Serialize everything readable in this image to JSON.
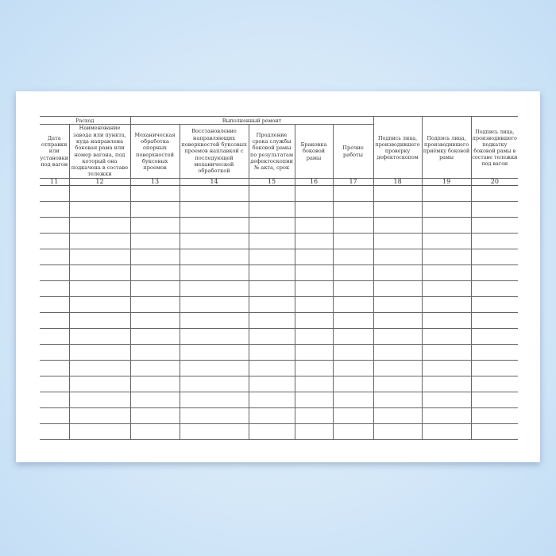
{
  "form": {
    "group_headers": {
      "expense": "Расход",
      "repair": "Выполненный ремонт"
    },
    "columns": [
      {
        "number": "11",
        "label": "Дата отправки или установки под вагон"
      },
      {
        "number": "12",
        "label": "Наименование завода или пункта, куда направлена боковая рама или номер вагона, под который она подкачена в составе тележки"
      },
      {
        "number": "13",
        "label": "Механическая обработка опорных поверхностей буксовых проемов"
      },
      {
        "number": "14",
        "label": "Восстановление направляющих поверхностей буксовых проемов наплавкой с последующей механической обработкой"
      },
      {
        "number": "15",
        "label": "Продление срока службы боковой рамы по результатам дефектоскопии № акта, срок"
      },
      {
        "number": "16",
        "label": "Браковка боковой рамы"
      },
      {
        "number": "17",
        "label": "Прочие работы"
      },
      {
        "number": "18",
        "label": "Подпись лица, производившего проверку дефектоскопом"
      },
      {
        "number": "19",
        "label": "Подпись лица, производившего приёмку боковой рамы"
      },
      {
        "number": "20",
        "label": "Подпись лица, производившего подкатку боковой рамы в составе тележки под вагон"
      }
    ],
    "empty_rows": 16
  }
}
